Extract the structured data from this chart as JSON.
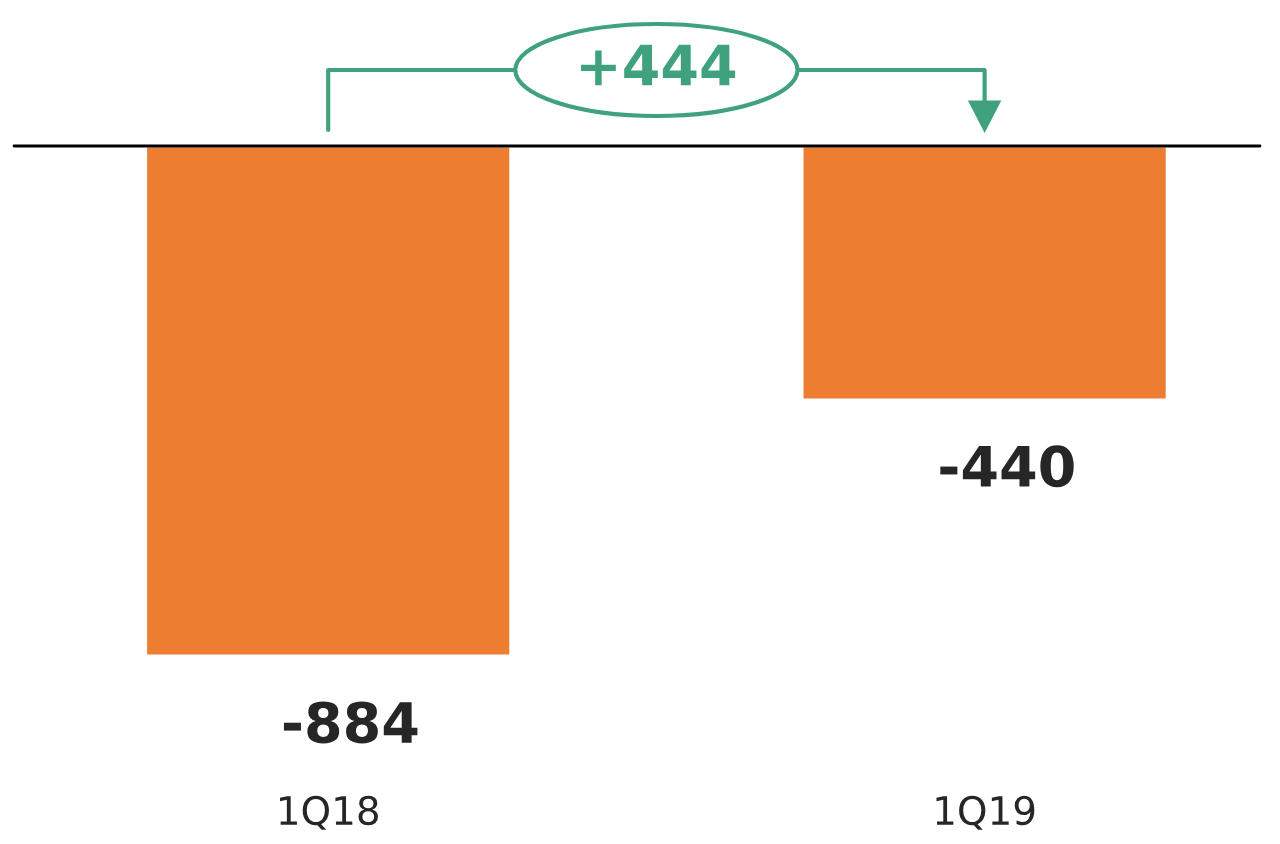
{
  "chart_data": {
    "type": "bar",
    "categories": [
      "1Q18",
      "1Q19"
    ],
    "values": [
      -884,
      -440
    ],
    "color": "#ed7d31",
    "data_labels": true,
    "annotations": [
      "+444"
    ]
  }
}
